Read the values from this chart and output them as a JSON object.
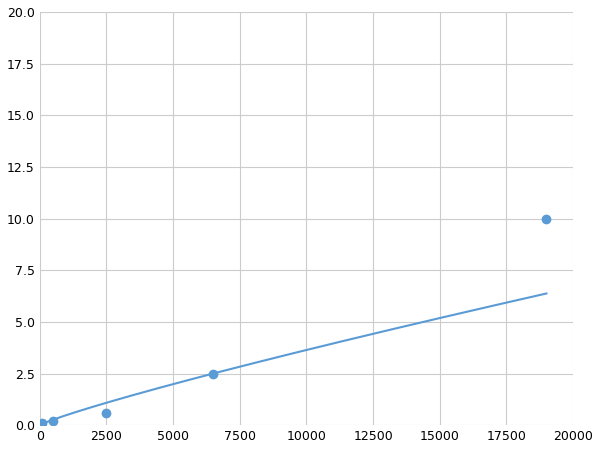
{
  "x": [
    100,
    500,
    2500,
    6500,
    19000
  ],
  "y": [
    0.1,
    0.2,
    0.6,
    2.5,
    10.0
  ],
  "line_color": "#5b9bd5",
  "marker_color": "#5b9bd5",
  "marker_size": 6,
  "marker_linewidth": 1.0,
  "line_width": 1.5,
  "xlim": [
    0,
    20000
  ],
  "ylim": [
    0,
    20.0
  ],
  "xticks": [
    0,
    2500,
    5000,
    7500,
    10000,
    12500,
    15000,
    17500,
    20000
  ],
  "yticks": [
    0.0,
    2.5,
    5.0,
    7.5,
    10.0,
    12.5,
    15.0,
    17.5,
    20.0
  ],
  "grid_color": "#cccccc",
  "background_color": "#ffffff",
  "figure_background": "#ffffff",
  "figsize": [
    6.0,
    4.5
  ],
  "dpi": 100
}
